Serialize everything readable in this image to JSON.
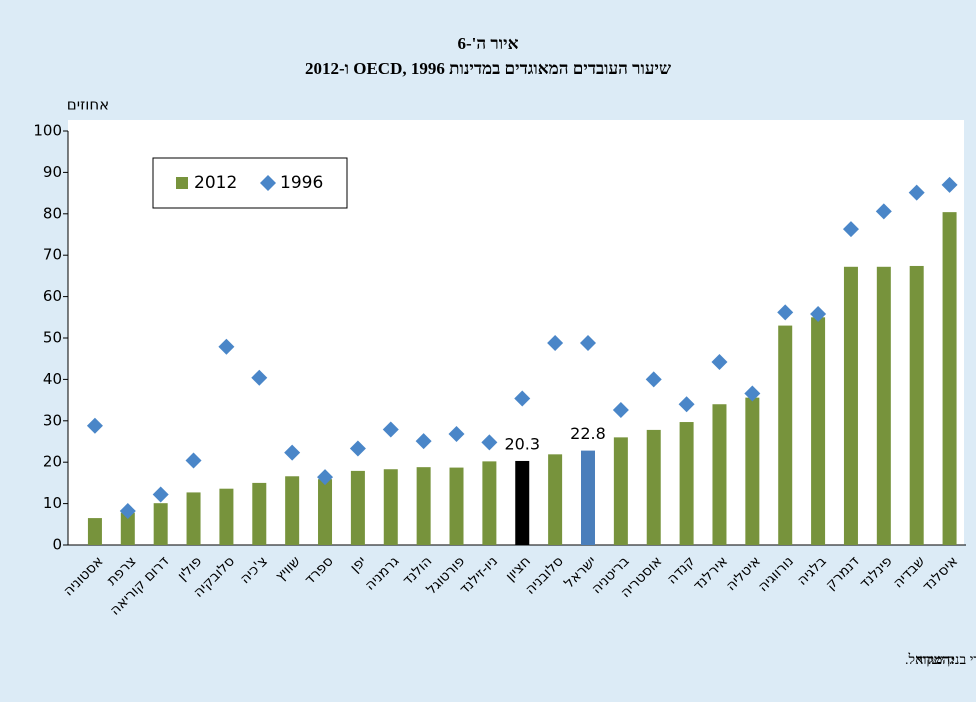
{
  "chart_data": {
    "type": "bar",
    "title": "איור ה'-6",
    "subtitle": "שיעור העובדים המאוגדים במדינות OECD, 1996 ו-2012",
    "y_label": "אחוזים",
    "source_label": "המקור:",
    "source": "OECD statistics ועיבודי בנק ישראל.",
    "categories": [
      "אסטוניה",
      "צרפת",
      "דרום קוריאה",
      "פולין",
      "סלובקיה",
      "צ'כיה",
      "שוויץ",
      "ספרד",
      "יפן",
      "גרמניה",
      "הולנד",
      "פורטוגל",
      "ניו-זילנד",
      "חציון",
      "סלובניה",
      "ישראל",
      "בריטניה",
      "אוסטריה",
      "קנדה",
      "אירלנד",
      "איטליה",
      "נורווגיה",
      "בלגיה",
      "דנמרק",
      "פינלנד",
      "שבדיה",
      "איסלנד"
    ],
    "series": [
      {
        "name": "2012",
        "color": "#77933c",
        "colors": [
          "#77933c",
          "#77933c",
          "#77933c",
          "#77933c",
          "#77933c",
          "#77933c",
          "#77933c",
          "#77933c",
          "#77933c",
          "#77933c",
          "#77933c",
          "#77933c",
          "#77933c",
          "#000000",
          "#77933c",
          "#4a7ebb",
          "#77933c",
          "#77933c",
          "#77933c",
          "#77933c",
          "#77933c",
          "#77933c",
          "#77933c",
          "#77933c",
          "#77933c",
          "#77933c",
          "#77933c"
        ],
        "values": [
          6.5,
          7.8,
          10.1,
          12.7,
          13.6,
          15.0,
          16.6,
          15.9,
          17.9,
          18.3,
          18.8,
          18.7,
          20.2,
          20.3,
          21.9,
          22.8,
          26.0,
          27.8,
          29.7,
          34.0,
          35.6,
          53.0,
          55.0,
          67.2,
          67.2,
          67.4,
          80.4
        ],
        "labeled": [
          13,
          15
        ]
      },
      {
        "name": "1996",
        "color": "#4a86c8",
        "marker": "diamond",
        "values": [
          28.8,
          8.2,
          12.2,
          20.4,
          47.9,
          40.4,
          22.3,
          16.4,
          23.3,
          27.9,
          25.1,
          26.8,
          24.8,
          35.4,
          48.8,
          48.8,
          32.6,
          40.0,
          34.0,
          44.2,
          36.6,
          56.2,
          55.8,
          76.3,
          80.6,
          85.1,
          87.0
        ]
      }
    ],
    "ylim": [
      0,
      100
    ],
    "yticks": [
      0,
      10,
      20,
      30,
      40,
      50,
      60,
      70,
      80,
      90,
      100
    ]
  }
}
